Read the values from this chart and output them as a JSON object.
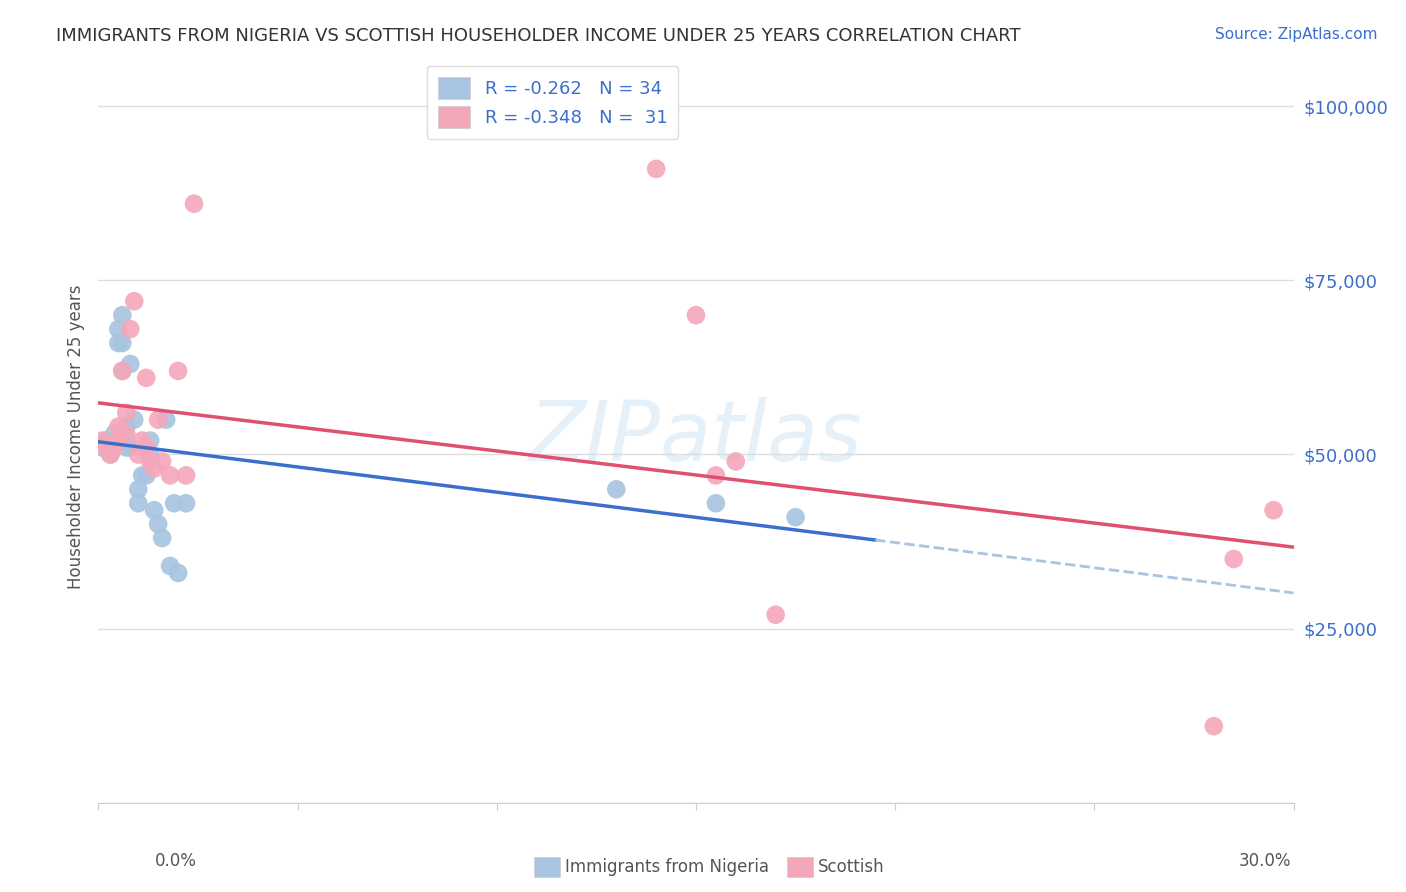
{
  "title": "IMMIGRANTS FROM NIGERIA VS SCOTTISH HOUSEHOLDER INCOME UNDER 25 YEARS CORRELATION CHART",
  "source": "Source: ZipAtlas.com",
  "ylabel": "Householder Income Under 25 years",
  "y_ticks": [
    0,
    25000,
    50000,
    75000,
    100000
  ],
  "y_tick_labels": [
    "",
    "$25,000",
    "$50,000",
    "$75,000",
    "$100,000"
  ],
  "x_min": 0.0,
  "x_max": 0.3,
  "y_min": 0,
  "y_max": 105000,
  "blue_R": "-0.262",
  "blue_N": "34",
  "pink_R": "-0.348",
  "pink_N": "31",
  "blue_color": "#a8c4e0",
  "pink_color": "#f4a7b9",
  "blue_line_color": "#3b6fcc",
  "pink_line_color": "#e05070",
  "blue_dash_color": "#a8c4e0",
  "legend_text_color": "#3b6fcc",
  "title_color": "#333333",
  "grid_color": "#dddddd",
  "blue_scatter_x": [
    0.001,
    0.002,
    0.003,
    0.003,
    0.004,
    0.004,
    0.005,
    0.005,
    0.006,
    0.006,
    0.006,
    0.007,
    0.007,
    0.007,
    0.008,
    0.008,
    0.009,
    0.01,
    0.01,
    0.011,
    0.012,
    0.013,
    0.013,
    0.014,
    0.015,
    0.016,
    0.017,
    0.018,
    0.019,
    0.02,
    0.022,
    0.13,
    0.155,
    0.175
  ],
  "blue_scatter_y": [
    51000,
    52000,
    50000,
    50500,
    51500,
    53000,
    68000,
    66000,
    70000,
    66000,
    62000,
    54000,
    52000,
    51000,
    51000,
    63000,
    55000,
    45000,
    43000,
    47000,
    47000,
    52000,
    50000,
    42000,
    40000,
    38000,
    55000,
    34000,
    43000,
    33000,
    43000,
    45000,
    43000,
    41000
  ],
  "pink_scatter_x": [
    0.001,
    0.002,
    0.003,
    0.004,
    0.005,
    0.005,
    0.006,
    0.007,
    0.007,
    0.008,
    0.009,
    0.01,
    0.011,
    0.012,
    0.012,
    0.013,
    0.014,
    0.015,
    0.016,
    0.018,
    0.02,
    0.022,
    0.024,
    0.14,
    0.15,
    0.155,
    0.16,
    0.17,
    0.28,
    0.285,
    0.295
  ],
  "pink_scatter_y": [
    52000,
    51000,
    50000,
    51000,
    54000,
    52000,
    62000,
    56000,
    53000,
    68000,
    72000,
    50000,
    52000,
    51000,
    61000,
    49000,
    48000,
    55000,
    49000,
    47000,
    62000,
    47000,
    86000,
    91000,
    70000,
    47000,
    49000,
    27000,
    11000,
    35000,
    42000
  ]
}
